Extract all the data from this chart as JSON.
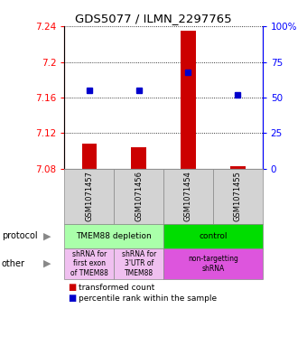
{
  "title": "GDS5077 / ILMN_2297765",
  "samples": [
    "GSM1071457",
    "GSM1071456",
    "GSM1071454",
    "GSM1071455"
  ],
  "bar_values": [
    7.108,
    7.104,
    7.235,
    7.083
  ],
  "bar_bottoms": [
    7.08,
    7.08,
    7.08,
    7.08
  ],
  "percentile_values": [
    55,
    55,
    68,
    52
  ],
  "ylim_left": [
    7.08,
    7.24
  ],
  "yticks_left": [
    7.08,
    7.12,
    7.16,
    7.2,
    7.24
  ],
  "yticks_right": [
    0,
    25,
    50,
    75,
    100
  ],
  "ytick_labels_right": [
    "0",
    "25",
    "50",
    "75",
    "100%"
  ],
  "bar_color": "#cc0000",
  "dot_color": "#0000cc",
  "protocol_labels": [
    "TMEM88 depletion",
    "control"
  ],
  "protocol_colors": [
    "#aaffaa",
    "#00dd00"
  ],
  "other_labels": [
    "shRNA for\nfirst exon\nof TMEM88",
    "shRNA for\n3'UTR of\nTMEM88",
    "non-targetting\nshRNA"
  ],
  "other_colors": [
    "#f0c0f0",
    "#f0c0f0",
    "#dd55dd"
  ],
  "legend_red": "transformed count",
  "legend_blue": "percentile rank within the sample"
}
